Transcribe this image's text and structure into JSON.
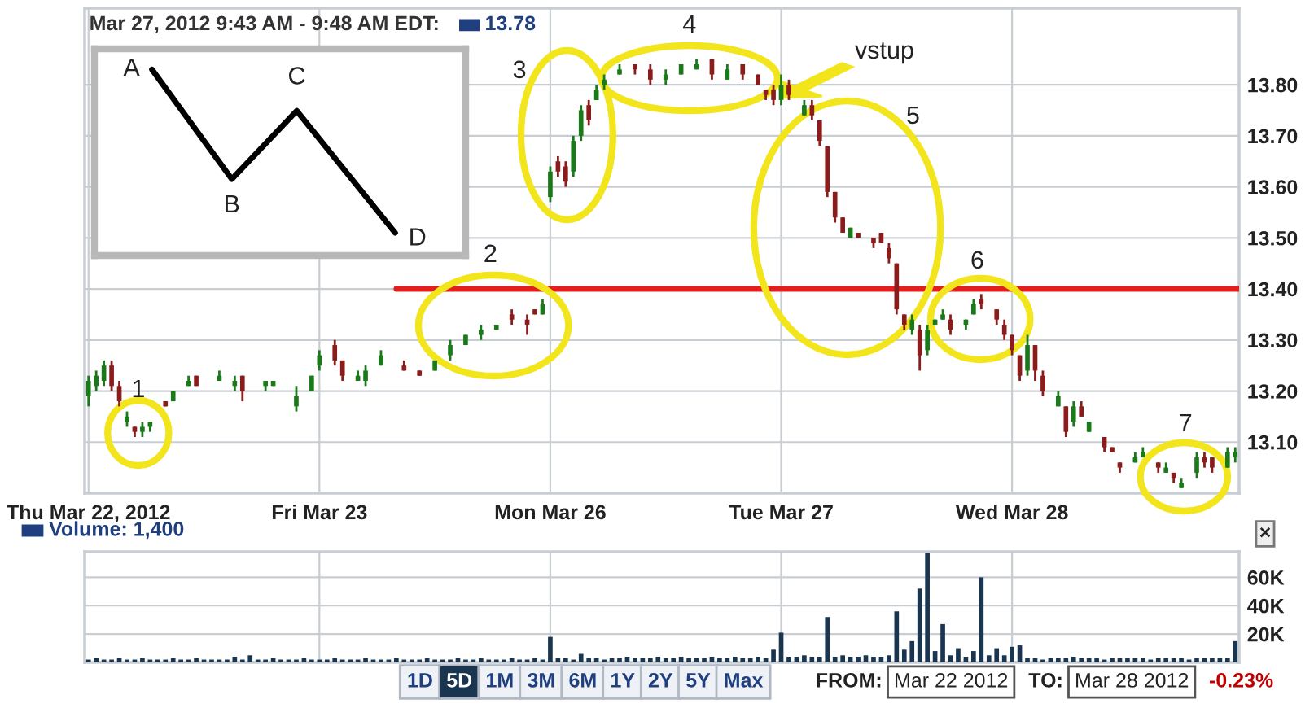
{
  "chart_data": [
    {
      "type": "candlestick",
      "title": "Mar 27, 2012 9:43 AM - 9:48 AM EDT:",
      "subtitle": "13.78",
      "categories": [
        "Thu Mar 22, 2012",
        null,
        null,
        null,
        null,
        null,
        null,
        null,
        null,
        null,
        null,
        null,
        null,
        null,
        null,
        null,
        null,
        null,
        null,
        null,
        null,
        null,
        null,
        null,
        null,
        null,
        null,
        null,
        null,
        null,
        "Fri Mar 23",
        null,
        null,
        null,
        null,
        null,
        null,
        null,
        null,
        null,
        null,
        null,
        null,
        null,
        null,
        null,
        null,
        null,
        null,
        null,
        null,
        null,
        null,
        null,
        null,
        null,
        null,
        null,
        null,
        null,
        "Mon Mar 26",
        null,
        null,
        null,
        null,
        null,
        null,
        null,
        null,
        null,
        null,
        null,
        null,
        null,
        null,
        null,
        null,
        null,
        null,
        null,
        null,
        null,
        null,
        null,
        null,
        null,
        null,
        null,
        null,
        null,
        "Tue Mar 27",
        null,
        null,
        null,
        null,
        null,
        null,
        null,
        null,
        null,
        null,
        null,
        null,
        null,
        null,
        null,
        null,
        null,
        null,
        null,
        null,
        null,
        null,
        null,
        null,
        null,
        null,
        null,
        null,
        null,
        "Wed Mar 28",
        null,
        null,
        null,
        null,
        null,
        null,
        null,
        null,
        null,
        null,
        null,
        null,
        null,
        null,
        null,
        null,
        null,
        null,
        null,
        null,
        null,
        null,
        null,
        null,
        null,
        null,
        null,
        null,
        null
      ],
      "ylim": [
        13.0,
        13.95
      ],
      "yticks": [
        {
          "value": 13.1,
          "label": "13.10"
        },
        {
          "value": 13.2,
          "label": "13.20"
        },
        {
          "value": 13.3,
          "label": "13.30"
        },
        {
          "value": 13.4,
          "label": "13.40"
        },
        {
          "value": 13.5,
          "label": "13.50"
        },
        {
          "value": 13.6,
          "label": "13.60"
        },
        {
          "value": 13.7,
          "label": "13.70"
        },
        {
          "value": 13.8,
          "label": "13.80"
        }
      ],
      "grid": true,
      "ref_lines": [
        {
          "axis": "y",
          "value": 13.4,
          "color": "#e02020"
        }
      ],
      "ohlc": [
        [
          13.19,
          13.23,
          13.17,
          13.22
        ],
        [
          13.21,
          13.24,
          13.2,
          13.23
        ],
        [
          13.22,
          13.26,
          13.21,
          13.25
        ],
        [
          13.25,
          13.26,
          13.2,
          13.21
        ],
        [
          13.21,
          13.22,
          13.17,
          13.18
        ],
        [
          13.14,
          13.16,
          13.13,
          13.15
        ],
        [
          13.13,
          13.13,
          13.11,
          13.12
        ],
        [
          13.12,
          13.14,
          13.11,
          13.13
        ],
        [
          13.13,
          13.14,
          13.12,
          13.14
        ],
        null,
        [
          13.18,
          13.18,
          13.17,
          13.17
        ],
        [
          13.18,
          13.2,
          13.18,
          13.2
        ],
        null,
        [
          13.21,
          13.23,
          13.21,
          13.22
        ],
        [
          13.23,
          13.23,
          13.21,
          13.21
        ],
        null,
        null,
        [
          13.22,
          13.24,
          13.22,
          13.23
        ],
        null,
        [
          13.21,
          13.23,
          13.2,
          13.22
        ],
        [
          13.23,
          13.23,
          13.18,
          13.2
        ],
        null,
        null,
        [
          13.21,
          13.22,
          13.2,
          13.22
        ],
        [
          13.21,
          13.22,
          13.21,
          13.22
        ],
        null,
        null,
        [
          13.17,
          13.21,
          13.16,
          13.19
        ],
        null,
        [
          13.2,
          13.23,
          13.2,
          13.23
        ],
        [
          13.25,
          13.28,
          13.24,
          13.27
        ],
        null,
        [
          13.29,
          13.3,
          13.25,
          13.26
        ],
        [
          13.26,
          13.26,
          13.22,
          13.23
        ],
        null,
        [
          13.22,
          13.24,
          13.22,
          13.23
        ],
        [
          13.22,
          13.25,
          13.21,
          13.24
        ],
        null,
        [
          13.25,
          13.28,
          13.25,
          13.27
        ],
        null,
        null,
        [
          13.25,
          13.26,
          13.24,
          13.24
        ],
        null,
        [
          13.24,
          13.24,
          13.23,
          13.23
        ],
        null,
        [
          13.24,
          13.26,
          13.24,
          13.26
        ],
        null,
        [
          13.27,
          13.3,
          13.26,
          13.29
        ],
        null,
        [
          13.29,
          13.31,
          13.29,
          13.31
        ],
        null,
        [
          13.31,
          13.33,
          13.3,
          13.32
        ],
        null,
        [
          13.32,
          13.33,
          13.32,
          13.33
        ],
        null,
        [
          13.35,
          13.36,
          13.33,
          13.34
        ],
        null,
        [
          13.34,
          13.35,
          13.31,
          13.33
        ],
        [
          13.36,
          13.36,
          13.35,
          13.35
        ],
        [
          13.35,
          13.38,
          13.35,
          13.37
        ],
        [
          13.58,
          13.64,
          13.57,
          13.63
        ],
        [
          13.65,
          13.66,
          13.62,
          13.63
        ],
        [
          13.64,
          13.65,
          13.6,
          13.61
        ],
        [
          13.63,
          13.7,
          13.62,
          13.69
        ],
        [
          13.7,
          13.76,
          13.69,
          13.75
        ],
        [
          13.76,
          13.77,
          13.72,
          13.73
        ],
        [
          13.77,
          13.8,
          13.77,
          13.79
        ],
        [
          13.8,
          13.82,
          13.79,
          13.81
        ],
        null,
        [
          13.82,
          13.84,
          13.82,
          13.83
        ],
        null,
        [
          13.84,
          13.84,
          13.82,
          13.83
        ],
        null,
        [
          13.83,
          13.84,
          13.8,
          13.81
        ],
        null,
        [
          13.81,
          13.83,
          13.8,
          13.82
        ],
        null,
        [
          13.82,
          13.84,
          13.82,
          13.84
        ],
        null,
        [
          13.83,
          13.85,
          13.83,
          13.84
        ],
        null,
        [
          13.85,
          13.85,
          13.81,
          13.82
        ],
        null,
        [
          13.81,
          13.84,
          13.81,
          13.83
        ],
        null,
        [
          13.84,
          13.84,
          13.81,
          13.82
        ],
        null,
        [
          13.82,
          13.82,
          13.8,
          13.8
        ],
        [
          13.79,
          13.79,
          13.77,
          13.78
        ],
        [
          13.79,
          13.8,
          13.76,
          13.77
        ],
        [
          13.77,
          13.82,
          13.76,
          13.8
        ],
        [
          13.8,
          13.81,
          13.77,
          13.78
        ],
        null,
        [
          13.74,
          13.77,
          13.74,
          13.76
        ],
        [
          13.76,
          13.77,
          13.73,
          13.74
        ],
        [
          13.73,
          13.73,
          13.68,
          13.69
        ],
        [
          13.68,
          13.68,
          13.58,
          13.59
        ],
        [
          13.59,
          13.59,
          13.53,
          13.54
        ],
        [
          13.54,
          13.54,
          13.51,
          13.51
        ],
        [
          13.5,
          13.52,
          13.5,
          13.52
        ],
        [
          13.51,
          13.51,
          13.5,
          13.5
        ],
        null,
        [
          13.5,
          13.5,
          13.48,
          13.49
        ],
        [
          13.51,
          13.51,
          13.49,
          13.49
        ],
        [
          13.48,
          13.49,
          13.45,
          13.46
        ],
        [
          13.45,
          13.45,
          13.35,
          13.36
        ],
        [
          13.35,
          13.35,
          13.32,
          13.33
        ],
        [
          13.32,
          13.35,
          13.31,
          13.34
        ],
        [
          13.32,
          13.33,
          13.24,
          13.27
        ],
        [
          13.28,
          13.33,
          13.27,
          13.32
        ],
        [
          13.33,
          13.34,
          13.33,
          13.34
        ],
        [
          13.34,
          13.36,
          13.34,
          13.35
        ],
        [
          13.34,
          13.35,
          13.31,
          13.32
        ],
        null,
        [
          13.33,
          13.34,
          13.32,
          13.34
        ],
        [
          13.35,
          13.38,
          13.35,
          13.37
        ],
        [
          13.38,
          13.39,
          13.36,
          13.37
        ],
        null,
        [
          13.36,
          13.36,
          13.33,
          13.34
        ],
        [
          13.33,
          13.34,
          13.3,
          13.31
        ],
        [
          13.31,
          13.31,
          13.27,
          13.28
        ],
        [
          13.27,
          13.27,
          13.22,
          13.23
        ],
        [
          13.24,
          13.31,
          13.23,
          13.29
        ],
        [
          13.29,
          13.29,
          13.22,
          13.24
        ],
        [
          13.23,
          13.24,
          13.19,
          13.2
        ],
        null,
        [
          13.17,
          13.2,
          13.17,
          13.19
        ],
        [
          13.17,
          13.17,
          13.11,
          13.12
        ],
        [
          13.14,
          13.18,
          13.13,
          13.17
        ],
        [
          13.17,
          13.18,
          13.15,
          13.15
        ],
        [
          13.12,
          13.14,
          13.12,
          13.14
        ],
        null,
        [
          13.11,
          13.11,
          13.08,
          13.09
        ],
        [
          13.09,
          13.09,
          13.08,
          13.08
        ],
        [
          13.06,
          13.06,
          13.04,
          13.05
        ],
        null,
        [
          13.06,
          13.08,
          13.06,
          13.07
        ],
        [
          13.07,
          13.09,
          13.07,
          13.08
        ],
        null,
        [
          13.06,
          13.06,
          13.04,
          13.05
        ],
        [
          13.04,
          13.06,
          13.04,
          13.05
        ],
        [
          13.04,
          13.04,
          13.02,
          13.03
        ],
        [
          13.01,
          13.03,
          13.01,
          13.02
        ],
        null,
        [
          13.04,
          13.08,
          13.03,
          13.07
        ],
        [
          13.07,
          13.08,
          13.05,
          13.06
        ],
        [
          13.07,
          13.07,
          13.04,
          13.05
        ],
        null,
        [
          13.05,
          13.09,
          13.05,
          13.08
        ],
        [
          13.07,
          13.09,
          13.06,
          13.08
        ]
      ],
      "colors": [
        "#1a7a1a",
        "#1a7a1a",
        "#1a7a1a",
        "#8b1c1c",
        "#8b1c1c",
        "#1a7a1a",
        "#8b1c1c",
        "#1a7a1a",
        "#1a7a1a",
        null,
        "#8b1c1c",
        "#1a7a1a",
        null,
        "#1a7a1a",
        "#8b1c1c",
        null,
        null,
        "#1a7a1a",
        null,
        "#1a7a1a",
        "#8b1c1c",
        null,
        null,
        "#1a7a1a",
        "#1a7a1a",
        null,
        null,
        "#1a7a1a",
        null,
        "#1a7a1a",
        "#1a7a1a",
        null,
        "#8b1c1c",
        "#8b1c1c",
        null,
        "#1a7a1a",
        "#1a7a1a",
        null,
        "#1a7a1a",
        null,
        null,
        "#8b1c1c",
        null,
        "#8b1c1c",
        null,
        "#1a7a1a",
        null,
        "#1a7a1a",
        null,
        "#1a7a1a",
        null,
        "#1a7a1a",
        null,
        "#1a7a1a",
        null,
        "#8b1c1c",
        null,
        "#8b1c1c",
        "#8b1c1c",
        "#1a7a1a",
        "#1a7a1a",
        "#8b1c1c",
        "#8b1c1c",
        "#1a7a1a",
        "#1a7a1a",
        "#8b1c1c",
        "#1a7a1a",
        "#1a7a1a",
        null,
        "#1a7a1a",
        null,
        "#8b1c1c",
        null,
        "#8b1c1c",
        null,
        "#1a7a1a",
        null,
        "#1a7a1a",
        null,
        "#1a7a1a",
        null,
        "#8b1c1c",
        null,
        "#1a7a1a",
        null,
        "#8b1c1c",
        null,
        "#8b1c1c",
        "#8b1c1c",
        "#8b1c1c",
        "#1a7a1a",
        "#8b1c1c",
        null,
        "#1a7a1a",
        "#8b1c1c",
        "#8b1c1c",
        "#8b1c1c",
        "#8b1c1c",
        "#8b1c1c",
        "#1a7a1a",
        "#8b1c1c",
        null,
        "#8b1c1c",
        "#8b1c1c",
        "#8b1c1c",
        "#8b1c1c",
        "#8b1c1c",
        "#1a7a1a",
        "#8b1c1c",
        "#1a7a1a",
        "#1a7a1a",
        "#1a7a1a",
        "#8b1c1c",
        null,
        "#1a7a1a",
        "#1a7a1a",
        "#8b1c1c",
        null,
        "#8b1c1c",
        "#8b1c1c",
        "#8b1c1c",
        "#8b1c1c",
        "#1a7a1a",
        "#8b1c1c",
        "#8b1c1c",
        null,
        "#1a7a1a",
        "#8b1c1c",
        "#1a7a1a",
        "#8b1c1c",
        "#1a7a1a",
        null,
        "#8b1c1c",
        "#8b1c1c",
        "#8b1c1c",
        null,
        "#1a7a1a",
        "#1a7a1a",
        null,
        "#8b1c1c",
        "#1a7a1a",
        "#8b1c1c",
        "#1a7a1a",
        null,
        "#1a7a1a",
        "#8b1c1c",
        "#8b1c1c",
        null,
        "#1a7a1a",
        "#1a7a1a"
      ],
      "annotations": [
        "1",
        "2",
        "3",
        "4",
        "5",
        "6",
        "7",
        "vstup",
        "A",
        "B",
        "C",
        "D"
      ]
    },
    {
      "type": "bar",
      "title": "Volume: 1,400",
      "color": "#1a3550",
      "categories": [
        null,
        null,
        null,
        null,
        null,
        null,
        null,
        null,
        null,
        null,
        null,
        null,
        null,
        null,
        null,
        null,
        null,
        null,
        null,
        null,
        null,
        null,
        null,
        null,
        null,
        null,
        null,
        null,
        null,
        null,
        null,
        null,
        null,
        null,
        null,
        null,
        null,
        null,
        null,
        null,
        null,
        null,
        null,
        null,
        null,
        null,
        null,
        null,
        null,
        null,
        null,
        null,
        null,
        null,
        null,
        null,
        null,
        null,
        null,
        null,
        null,
        null,
        null,
        null,
        null,
        null,
        null,
        null,
        null,
        null,
        null,
        null,
        null,
        null,
        null,
        null,
        null,
        null,
        null,
        null,
        null,
        null,
        null,
        null,
        null,
        null,
        null,
        null,
        null,
        null,
        null,
        null,
        null,
        null,
        null,
        null,
        null,
        null,
        null,
        null,
        null,
        null,
        null,
        null,
        null,
        null,
        null,
        null,
        null,
        null,
        null,
        null,
        null,
        null,
        null,
        null,
        null,
        null,
        null,
        null,
        null,
        null,
        null,
        null,
        null,
        null,
        null,
        null,
        null,
        null,
        null,
        null,
        null,
        null,
        null,
        null,
        null,
        null,
        null,
        null,
        null,
        null,
        null,
        null,
        null,
        null,
        null,
        null,
        null,
        null
      ],
      "values": [
        2000,
        3000,
        2000,
        2000,
        3000,
        2000,
        2000,
        3000,
        2000,
        2000,
        2000,
        3000,
        2000,
        2000,
        3000,
        2000,
        2000,
        2000,
        2000,
        4000,
        2000,
        5000,
        2000,
        2000,
        3000,
        2000,
        2000,
        2000,
        3000,
        2000,
        2000,
        2000,
        3000,
        2000,
        2000,
        2000,
        3000,
        2000,
        2000,
        2000,
        3000,
        2000,
        2000,
        2000,
        3000,
        2000,
        2000,
        2000,
        3000,
        2000,
        2000,
        3000,
        2000,
        2000,
        2000,
        3000,
        2000,
        2000,
        3000,
        2000,
        18000,
        3000,
        3000,
        2000,
        6000,
        3000,
        3000,
        2000,
        3000,
        3000,
        4000,
        3000,
        3000,
        3000,
        4000,
        3000,
        3000,
        4000,
        3000,
        3000,
        3000,
        4000,
        3000,
        3000,
        4000,
        3000,
        3000,
        4000,
        3000,
        9000,
        21000,
        4000,
        4000,
        5000,
        4000,
        4000,
        32000,
        4000,
        5000,
        4000,
        4000,
        5000,
        4000,
        4000,
        5000,
        36000,
        9000,
        15000,
        52000,
        77000,
        8000,
        27000,
        5000,
        10000,
        4000,
        8000,
        60000,
        5000,
        10000,
        5000,
        11000,
        12000,
        3000,
        3000,
        2000,
        3000,
        3000,
        3000,
        4000,
        3000,
        3000,
        3000,
        2000,
        3000,
        3000,
        3000,
        3000,
        3000,
        2000,
        3000,
        3000,
        3000,
        3000,
        2000,
        3000,
        3000,
        3000,
        3000,
        3000,
        15000
      ],
      "ylim": [
        0,
        78000
      ],
      "yticks": [
        {
          "value": 20000,
          "label": "20K"
        },
        {
          "value": 40000,
          "label": "40K"
        },
        {
          "value": 60000,
          "label": "60K"
        }
      ],
      "tick_labels": "y",
      "grid": true,
      "annotations": [
        "1D",
        "5D",
        "1M",
        "3M",
        "6M",
        "1Y",
        "2Y",
        "5Y",
        "Max",
        "FROM:",
        "Mar 22 2012",
        "TO:",
        "Mar 28 2012",
        "-0.23%",
        "×"
      ]
    }
  ]
}
